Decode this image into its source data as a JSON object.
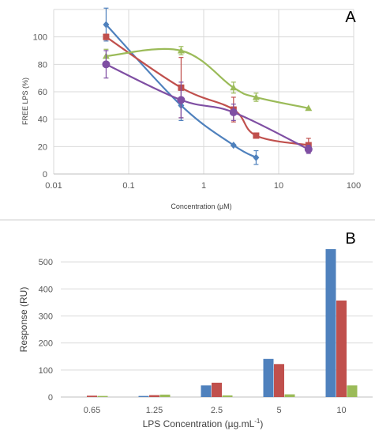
{
  "colors": {
    "blue": "#4f81bd",
    "red": "#c0504d",
    "green": "#9bbb59",
    "purple": "#7f4fa3",
    "grid": "#d9d9d9",
    "axis": "#bfbfbf",
    "divider": "#cccccc"
  },
  "chart_data": [
    {
      "panel": "A",
      "type": "scatter",
      "xscale": "log",
      "xlim": [
        0.01,
        100
      ],
      "ylim": [
        0,
        120
      ],
      "xticks": [
        "0.01",
        "0.1",
        "1",
        "10",
        "100"
      ],
      "yticks": [
        "0",
        "20",
        "40",
        "60",
        "80",
        "100"
      ],
      "xlabel": "Concentration (µM)",
      "ylabel": "FREE LPS (%)",
      "grid": true,
      "series": [
        {
          "color": "blue",
          "marker": "diamond",
          "x": [
            0.05,
            0.5,
            2.5,
            5
          ],
          "y": [
            109,
            50,
            21,
            12
          ],
          "err": [
            12,
            11,
            0,
            5
          ]
        },
        {
          "color": "red",
          "marker": "square",
          "x": [
            0.05,
            0.5,
            2.5,
            5,
            25
          ],
          "y": [
            100,
            63,
            47,
            28,
            21
          ],
          "err": [
            2,
            22,
            9,
            0,
            5
          ]
        },
        {
          "color": "green",
          "marker": "triangle",
          "x": [
            0.05,
            0.5,
            2.5,
            5,
            25
          ],
          "y": [
            86,
            90,
            63,
            56,
            48
          ],
          "err": [
            5,
            3,
            4,
            3,
            0
          ]
        },
        {
          "color": "purple",
          "marker": "circle",
          "x": [
            0.05,
            0.5,
            2.5,
            25
          ],
          "y": [
            80,
            54,
            45,
            18
          ],
          "err": [
            10,
            13,
            6,
            3
          ]
        }
      ]
    },
    {
      "panel": "B",
      "type": "bar",
      "categories": [
        "0.65",
        "1.25",
        "2.5",
        "5",
        "10"
      ],
      "ylim": [
        0,
        550
      ],
      "yticks": [
        "0",
        "100",
        "200",
        "300",
        "400",
        "500"
      ],
      "xlabel_parts": [
        "LPS Concentration (µg.mL",
        "-1",
        ")"
      ],
      "ylabel": "Response (RU)",
      "grid": true,
      "series": [
        {
          "color": "blue",
          "values": [
            0,
            4,
            43,
            141,
            547
          ]
        },
        {
          "color": "red",
          "values": [
            5,
            7,
            53,
            122,
            357
          ]
        },
        {
          "color": "green",
          "values": [
            4,
            9,
            6,
            10,
            43
          ]
        }
      ]
    }
  ]
}
